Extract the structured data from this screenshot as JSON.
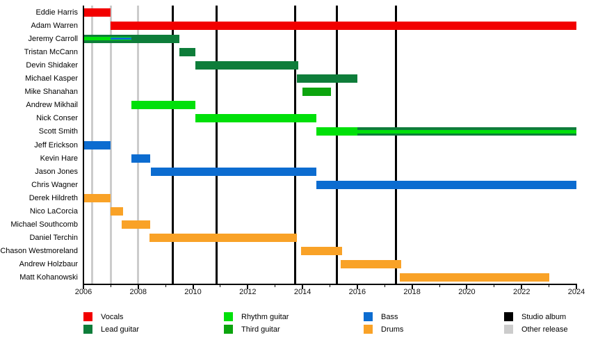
{
  "chart_data": {
    "type": "timeline",
    "title": "",
    "x_axis": {
      "min": 2006,
      "max": 2024,
      "tick_years": [
        2006,
        2007,
        2008,
        2009,
        2010,
        2011,
        2012,
        2013,
        2014,
        2015,
        2016,
        2017,
        2018,
        2019,
        2020,
        2021,
        2022,
        2023,
        2024
      ],
      "label_years": [
        2006,
        2008,
        2010,
        2012,
        2014,
        2016,
        2018,
        2020,
        2022,
        2024
      ]
    },
    "colors": {
      "vocals": "#f20000",
      "lead": "#0e7d3a",
      "rhythm": "#00e00a",
      "third": "#0ca40e",
      "bass": "#0c6cd0",
      "drums": "#f9a227",
      "album": "#000000",
      "other": "#cccccc"
    },
    "members": [
      {
        "name": "Eddie Harris",
        "segments": [
          {
            "start": 2006,
            "end": 2007,
            "role": "vocals"
          }
        ]
      },
      {
        "name": "Adam Warren",
        "segments": [
          {
            "start": 2007,
            "end": 2024,
            "role": "vocals"
          }
        ]
      },
      {
        "name": "Jeremy Carroll",
        "segments": [
          {
            "start": 2006,
            "end": 2007,
            "role": "lead",
            "stripes": [
              {
                "role": "rhythm",
                "height": 5
              }
            ]
          },
          {
            "start": 2007,
            "end": 2007.75,
            "role": "lead",
            "stripes": [
              {
                "role": "rhythm",
                "height": 5
              },
              {
                "role": "bass",
                "height": 3
              }
            ]
          },
          {
            "start": 2007.75,
            "end": 2009.5,
            "role": "lead"
          }
        ]
      },
      {
        "name": "Tristan McCann",
        "segments": [
          {
            "start": 2009.5,
            "end": 2010.1,
            "role": "lead"
          }
        ]
      },
      {
        "name": "Devin Shidaker",
        "segments": [
          {
            "start": 2010.1,
            "end": 2013.85,
            "role": "lead"
          }
        ]
      },
      {
        "name": "Michael Kasper",
        "segments": [
          {
            "start": 2013.8,
            "end": 2016,
            "role": "lead"
          }
        ]
      },
      {
        "name": "Mike Shanahan",
        "segments": [
          {
            "start": 2014,
            "end": 2015.05,
            "role": "third"
          }
        ]
      },
      {
        "name": "Andrew Mikhail",
        "segments": [
          {
            "start": 2007.75,
            "end": 2010.1,
            "role": "rhythm"
          }
        ]
      },
      {
        "name": "Nick Conser",
        "segments": [
          {
            "start": 2010.1,
            "end": 2014.5,
            "role": "rhythm"
          }
        ]
      },
      {
        "name": "Scott Smith",
        "segments": [
          {
            "start": 2014.5,
            "end": 2016,
            "role": "rhythm"
          },
          {
            "start": 2016,
            "end": 2024,
            "role": "lead",
            "stripes": [
              {
                "role": "rhythm",
                "height": 5
              }
            ]
          }
        ]
      },
      {
        "name": "Jeff Erickson",
        "segments": [
          {
            "start": 2006,
            "end": 2007,
            "role": "bass"
          }
        ]
      },
      {
        "name": "Kevin Hare",
        "segments": [
          {
            "start": 2007.75,
            "end": 2008.45,
            "role": "bass"
          }
        ]
      },
      {
        "name": "Jason Jones",
        "segments": [
          {
            "start": 2008.45,
            "end": 2014.5,
            "role": "bass"
          }
        ]
      },
      {
        "name": "Chris Wagner",
        "segments": [
          {
            "start": 2014.5,
            "end": 2024,
            "role": "bass"
          }
        ]
      },
      {
        "name": "Derek Hildreth",
        "segments": [
          {
            "start": 2006,
            "end": 2007,
            "role": "drums"
          }
        ]
      },
      {
        "name": "Nico LaCorcia",
        "segments": [
          {
            "start": 2007,
            "end": 2007.45,
            "role": "drums"
          }
        ]
      },
      {
        "name": "Michael Southcomb",
        "segments": [
          {
            "start": 2007.4,
            "end": 2008.45,
            "role": "drums"
          }
        ]
      },
      {
        "name": "Daniel Terchin",
        "segments": [
          {
            "start": 2008.4,
            "end": 2013.8,
            "role": "drums"
          }
        ]
      },
      {
        "name": "Chason Westmoreland",
        "segments": [
          {
            "start": 2013.95,
            "end": 2015.45,
            "role": "drums"
          }
        ]
      },
      {
        "name": "Andrew Holzbaur",
        "segments": [
          {
            "start": 2015.4,
            "end": 2017.6,
            "role": "drums"
          }
        ]
      },
      {
        "name": "Matt Kohanowski",
        "segments": [
          {
            "start": 2017.55,
            "end": 2023,
            "role": "drums"
          }
        ]
      }
    ],
    "events": {
      "studio_albums": [
        2009.25,
        2010.87,
        2013.74,
        2015.26,
        2017.42
      ],
      "other_releases": [
        2006.33,
        2007.0,
        2008.0
      ]
    },
    "legend_columns": [
      {
        "items": [
          {
            "label": "Vocals",
            "role": "vocals"
          },
          {
            "label": "Lead guitar",
            "role": "lead"
          }
        ]
      },
      {
        "items": [
          {
            "label": "Rhythm guitar",
            "role": "rhythm"
          },
          {
            "label": "Third guitar",
            "role": "third"
          }
        ]
      },
      {
        "items": [
          {
            "label": "Bass",
            "role": "bass"
          },
          {
            "label": "Drums",
            "role": "drums"
          }
        ]
      },
      {
        "items": [
          {
            "label": "Studio album",
            "role": "album"
          },
          {
            "label": "Other release",
            "role": "other"
          }
        ]
      }
    ],
    "legend_position": "bottom",
    "grid": "event-lines-only"
  }
}
